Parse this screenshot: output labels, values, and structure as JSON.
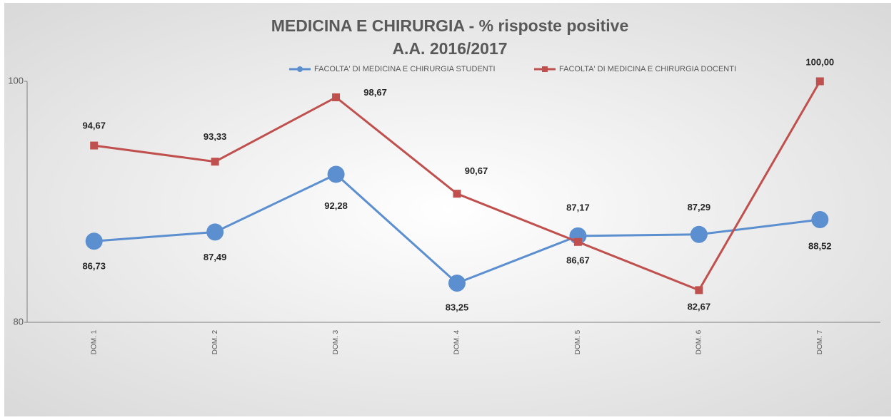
{
  "chart_data": {
    "type": "line",
    "title": "MEDICINA E CHIRURGIA - % risposte positive",
    "subtitle": "A.A. 2016/2017",
    "categories": [
      "DOM. 1",
      "DOM. 2",
      "DOM. 3",
      "DOM. 4",
      "DOM. 5",
      "DOM. 6",
      "DOM. 7"
    ],
    "series": [
      {
        "name": "FACOLTA' DI MEDICINA E CHIRURGIA STUDENTI",
        "color": "#5b8fd0",
        "marker": "circle",
        "values": [
          86.73,
          87.49,
          92.28,
          83.25,
          87.17,
          87.29,
          88.52
        ],
        "value_labels": [
          "86,73",
          "87,49",
          "92,28",
          "83,25",
          "87,17",
          "87,29",
          "88,52"
        ]
      },
      {
        "name": "FACOLTA' DI MEDICINA E CHIRURGIA DOCENTI",
        "color": "#c0504d",
        "marker": "square",
        "values": [
          94.67,
          93.33,
          98.67,
          90.67,
          86.67,
          82.67,
          100
        ],
        "value_labels": [
          "94,67",
          "93,33",
          "98,67",
          "90,67",
          "86,67",
          "82,67",
          "100,00"
        ]
      }
    ],
    "ylim": [
      80,
      100
    ],
    "yticks": [
      80,
      100
    ],
    "legend": "top"
  }
}
